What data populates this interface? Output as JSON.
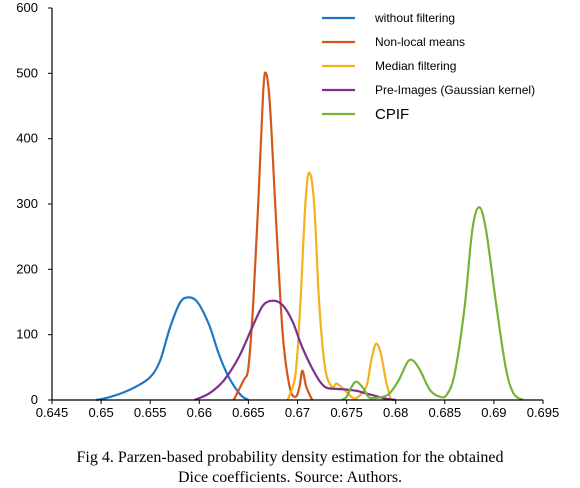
{
  "chart_data": {
    "type": "line",
    "xlim": [
      0.645,
      0.695
    ],
    "ylim": [
      0,
      600
    ],
    "x_ticks": [
      "0.645",
      "0.65",
      "0.655",
      "0.66",
      "0.665",
      "0.67",
      "0.675",
      "0.68",
      "0.685",
      "0.69",
      "0.695"
    ],
    "y_ticks": [
      "0",
      "100",
      "200",
      "300",
      "400",
      "500",
      "600"
    ],
    "grid": false,
    "legend": "top-right",
    "series": [
      {
        "name": "without filtering",
        "color": "#1f77c4",
        "points": [
          [
            0.6495,
            0
          ],
          [
            0.6505,
            3
          ],
          [
            0.652,
            10
          ],
          [
            0.6535,
            20
          ],
          [
            0.655,
            35
          ],
          [
            0.656,
            60
          ],
          [
            0.657,
            110
          ],
          [
            0.658,
            148
          ],
          [
            0.6588,
            157
          ],
          [
            0.6598,
            150
          ],
          [
            0.661,
            115
          ],
          [
            0.662,
            70
          ],
          [
            0.663,
            35
          ],
          [
            0.6642,
            8
          ],
          [
            0.665,
            0
          ]
        ]
      },
      {
        "name": "Non-local means",
        "color": "#d2571a",
        "points": [
          [
            0.6635,
            0
          ],
          [
            0.6645,
            30
          ],
          [
            0.665,
            50
          ],
          [
            0.6655,
            150
          ],
          [
            0.666,
            300
          ],
          [
            0.6665,
            470
          ],
          [
            0.6668,
            500
          ],
          [
            0.6672,
            450
          ],
          [
            0.6678,
            280
          ],
          [
            0.6685,
            100
          ],
          [
            0.6692,
            20
          ],
          [
            0.6698,
            5
          ],
          [
            0.6702,
            20
          ],
          [
            0.6705,
            45
          ],
          [
            0.6709,
            20
          ],
          [
            0.6715,
            0
          ]
        ]
      },
      {
        "name": "Median filtering",
        "color": "#f2b21c",
        "points": [
          [
            0.669,
            0
          ],
          [
            0.6698,
            40
          ],
          [
            0.6703,
            150
          ],
          [
            0.6708,
            300
          ],
          [
            0.6712,
            348
          ],
          [
            0.6717,
            300
          ],
          [
            0.6722,
            150
          ],
          [
            0.6728,
            50
          ],
          [
            0.6735,
            20
          ],
          [
            0.674,
            25
          ],
          [
            0.6748,
            15
          ],
          [
            0.6755,
            5
          ],
          [
            0.676,
            3
          ],
          [
            0.677,
            20
          ],
          [
            0.6775,
            60
          ],
          [
            0.678,
            86
          ],
          [
            0.6785,
            70
          ],
          [
            0.679,
            30
          ],
          [
            0.6795,
            0
          ]
        ]
      },
      {
        "name": "Pre-Images (Gaussian kernel)",
        "color": "#7d2f8e",
        "points": [
          [
            0.6595,
            0
          ],
          [
            0.661,
            10
          ],
          [
            0.6625,
            30
          ],
          [
            0.664,
            65
          ],
          [
            0.6655,
            115
          ],
          [
            0.6665,
            145
          ],
          [
            0.6675,
            152
          ],
          [
            0.6685,
            145
          ],
          [
            0.6695,
            120
          ],
          [
            0.6705,
            80
          ],
          [
            0.6718,
            40
          ],
          [
            0.6728,
            20
          ],
          [
            0.674,
            17
          ],
          [
            0.675,
            16
          ],
          [
            0.676,
            14
          ],
          [
            0.677,
            10
          ],
          [
            0.678,
            6
          ],
          [
            0.679,
            2
          ],
          [
            0.68,
            0
          ]
        ]
      },
      {
        "name": "CPIF",
        "color": "#74b436",
        "points": [
          [
            0.6745,
            0
          ],
          [
            0.675,
            5
          ],
          [
            0.6755,
            20
          ],
          [
            0.676,
            28
          ],
          [
            0.6767,
            18
          ],
          [
            0.6772,
            5
          ],
          [
            0.6778,
            3
          ],
          [
            0.6792,
            8
          ],
          [
            0.6803,
            30
          ],
          [
            0.6812,
            58
          ],
          [
            0.6818,
            60
          ],
          [
            0.6825,
            45
          ],
          [
            0.6835,
            15
          ],
          [
            0.6845,
            5
          ],
          [
            0.6852,
            8
          ],
          [
            0.686,
            40
          ],
          [
            0.687,
            140
          ],
          [
            0.6878,
            260
          ],
          [
            0.6885,
            295
          ],
          [
            0.6892,
            260
          ],
          [
            0.6902,
            150
          ],
          [
            0.6912,
            50
          ],
          [
            0.692,
            10
          ],
          [
            0.693,
            0
          ]
        ]
      }
    ]
  },
  "caption": {
    "line1": "Fig 4. Parzen-based probability density estimation for the obtained",
    "line2": "Dice coefficients. Source: Authors."
  }
}
